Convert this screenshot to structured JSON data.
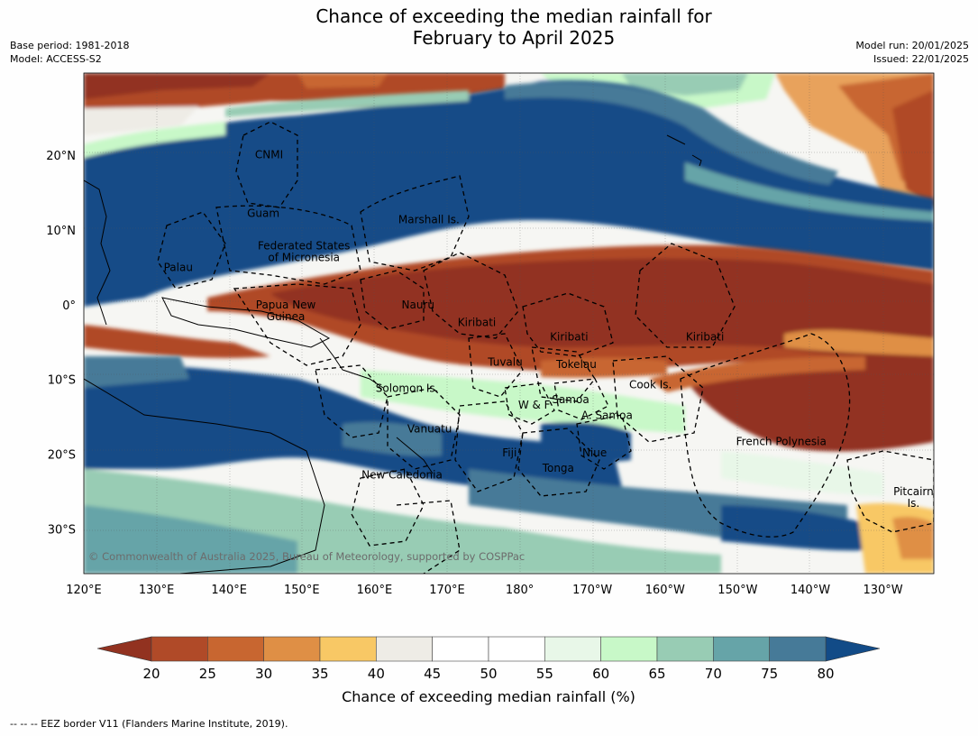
{
  "title": {
    "line1": "Chance of exceeding the median rainfall for",
    "line2": "February to April 2025"
  },
  "meta_left": {
    "base_period": "Base period: 1981-2018",
    "model": "Model: ACCESS-S2"
  },
  "meta_right": {
    "model_run": "Model run: 20/01/2025",
    "issued": "Issued: 22/01/2025"
  },
  "map": {
    "lon_ticks": [
      {
        "label": "120°E",
        "lon": 120
      },
      {
        "label": "130°E",
        "lon": 130
      },
      {
        "label": "140°E",
        "lon": 140
      },
      {
        "label": "150°E",
        "lon": 150
      },
      {
        "label": "160°E",
        "lon": 160
      },
      {
        "label": "170°E",
        "lon": 170
      },
      {
        "label": "180°",
        "lon": 180
      },
      {
        "label": "170°W",
        "lon": 190
      },
      {
        "label": "160°W",
        "lon": 200
      },
      {
        "label": "150°W",
        "lon": 210
      },
      {
        "label": "140°W",
        "lon": 220
      },
      {
        "label": "130°W",
        "lon": 230
      }
    ],
    "lat_ticks": [
      {
        "label": "20°N",
        "lat": 20
      },
      {
        "label": "10°N",
        "lat": 10
      },
      {
        "label": "0°",
        "lat": 0
      },
      {
        "label": "10°S",
        "lat": -10
      },
      {
        "label": "20°S",
        "lat": -20
      },
      {
        "label": "30°S",
        "lat": -30
      }
    ],
    "lon_range": [
      120,
      237
    ],
    "lat_range": [
      -36,
      31
    ],
    "copyright": "© Commonwealth of Australia 2025, Bureau of Meteorology, supported by COSPPac",
    "regions": [
      {
        "label": "CNMI",
        "lon": 145.5,
        "lat": 20.1
      },
      {
        "label": "Guam",
        "lon": 144.7,
        "lat": 12.2
      },
      {
        "label": "Marshall Is.",
        "lon": 167.5,
        "lat": 11.4
      },
      {
        "label": "Federated States",
        "lon": 150.3,
        "lat": 7.9
      },
      {
        "label": "of Micronesia",
        "lon": 150.3,
        "lat": 6.3
      },
      {
        "label": "Palau",
        "lon": 133.0,
        "lat": 5.0
      },
      {
        "label": "Papua New",
        "lon": 147.8,
        "lat": 0.0
      },
      {
        "label": "Guinea",
        "lon": 147.8,
        "lat": -1.6
      },
      {
        "label": "Nauru",
        "lon": 166.0,
        "lat": 0.0
      },
      {
        "label": "Kiribati",
        "lon": 174.1,
        "lat": -2.4
      },
      {
        "label": "Kiribati",
        "lon": 186.8,
        "lat": -4.3
      },
      {
        "label": "Kiribati",
        "lon": 205.5,
        "lat": -4.3
      },
      {
        "label": "Tuvalu",
        "lon": 178.0,
        "lat": -7.7
      },
      {
        "label": "Tokelau",
        "lon": 187.8,
        "lat": -8.0
      },
      {
        "label": "Solomon Is.",
        "lon": 164.5,
        "lat": -11.2
      },
      {
        "label": "Cook Is.",
        "lon": 198.0,
        "lat": -10.7
      },
      {
        "label": "Samoa",
        "lon": 187.0,
        "lat": -12.7
      },
      {
        "label": "W & F",
        "lon": 182.0,
        "lat": -13.4
      },
      {
        "label": "A. Samoa",
        "lon": 192.0,
        "lat": -14.8
      },
      {
        "label": "Vanuatu",
        "lon": 167.6,
        "lat": -16.6
      },
      {
        "label": "Fiji",
        "lon": 178.6,
        "lat": -19.8
      },
      {
        "label": "Niue",
        "lon": 190.3,
        "lat": -19.8
      },
      {
        "label": "French Polynesia",
        "lon": 216.0,
        "lat": -18.3
      },
      {
        "label": "Tonga",
        "lon": 185.3,
        "lat": -21.9
      },
      {
        "label": "New Caledonia",
        "lon": 163.8,
        "lat": -22.8
      },
      {
        "label": "Pitcairn",
        "lon": 234.2,
        "lat": -25.0
      },
      {
        "label": "Is.",
        "lon": 234.2,
        "lat": -26.6
      }
    ]
  },
  "colorbar": {
    "title": "Chance of exceeding median rainfall (%)",
    "ticks": [
      "20",
      "25",
      "30",
      "35",
      "40",
      "45",
      "50",
      "55",
      "60",
      "65",
      "70",
      "75",
      "80"
    ],
    "low_extend_color": "#923220",
    "high_extend_color": "#124b87",
    "colors": [
      "#b04a28",
      "#c86630",
      "#df8f45",
      "#f8c865",
      "#eeece6",
      "#ffffff",
      "#ffffff",
      "#e8f7e8",
      "#c8f8c8",
      "#98ccb4",
      "#66a4a8",
      "#467a98"
    ]
  },
  "footnote": "--  --  -- EEZ border V11 (Flanders Marine Institute, 2019)."
}
